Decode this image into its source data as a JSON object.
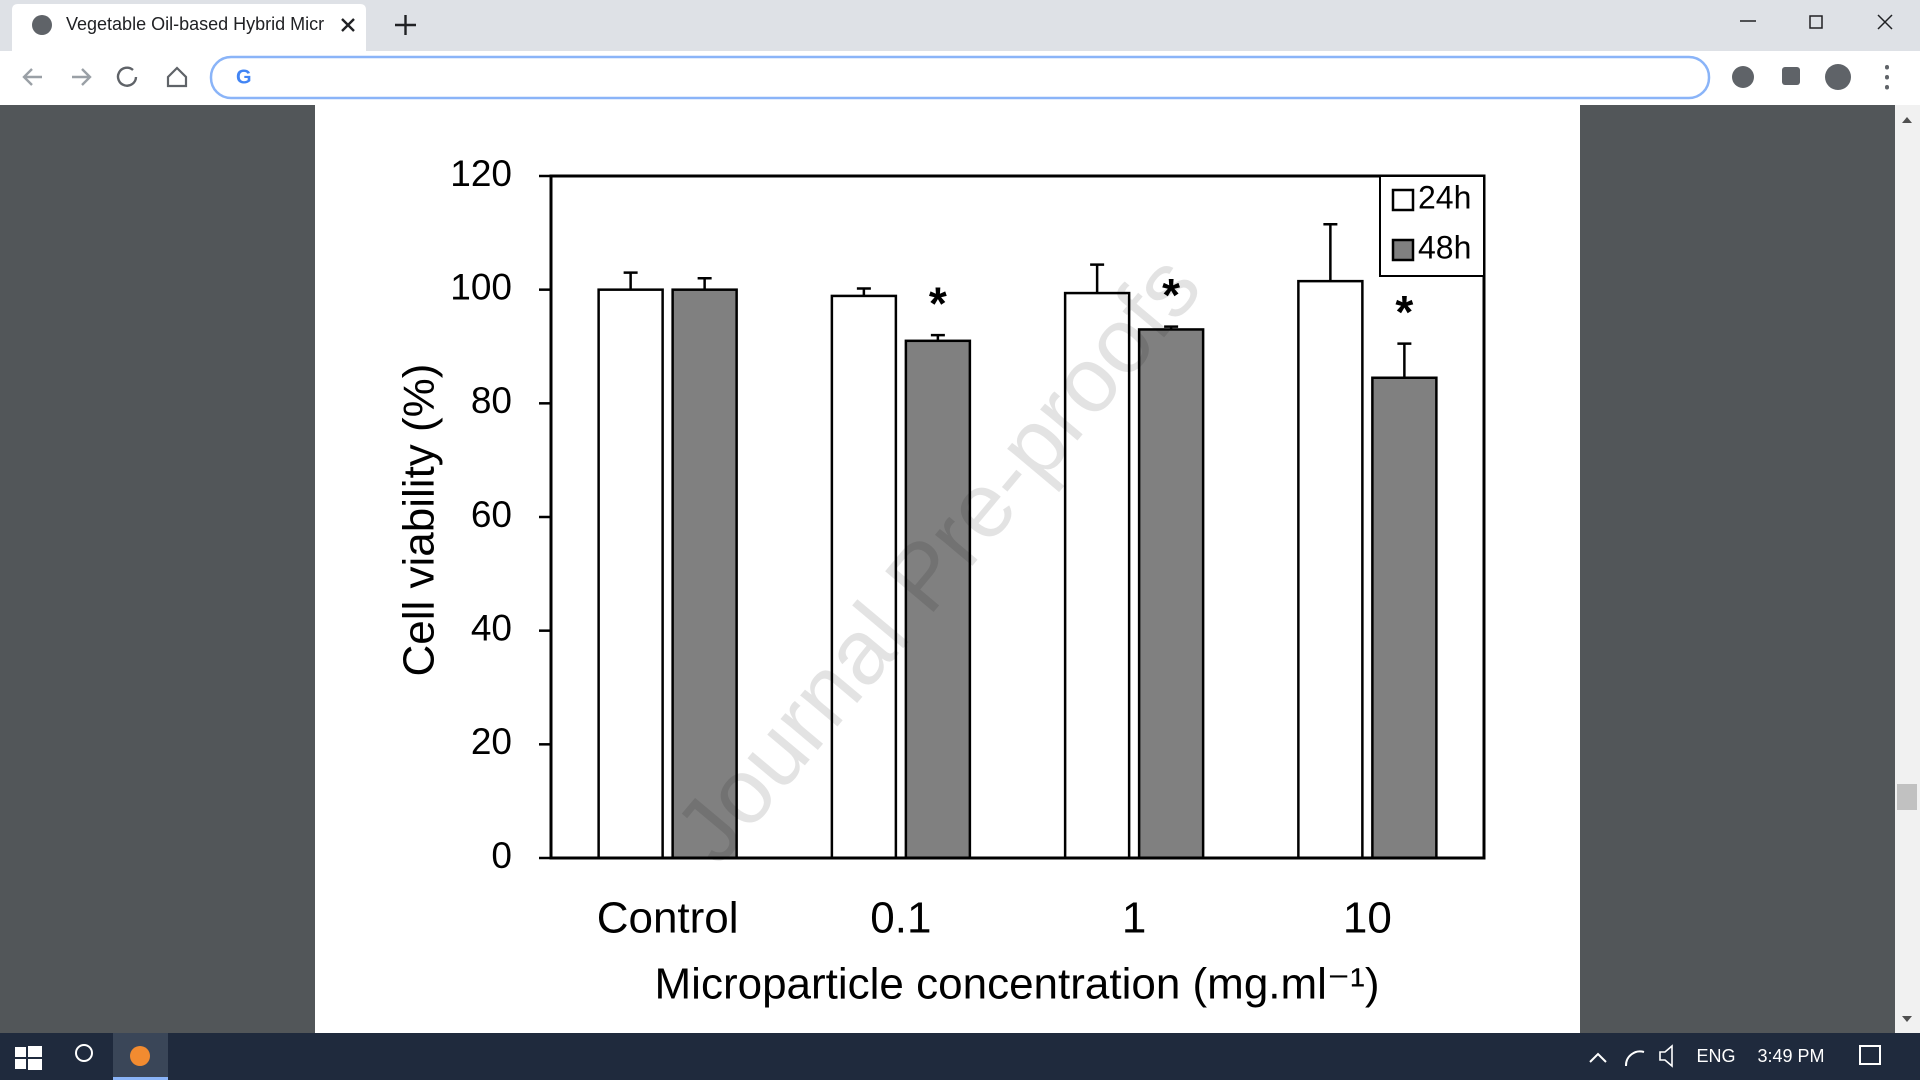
{
  "browser": {
    "tab_title": "Vegetable Oil-based Hybrid Micr"
  },
  "taskbar": {
    "language": "ENG",
    "time": "3:49 PM"
  },
  "chart_data": {
    "type": "bar",
    "watermark": "Journal Pre-proofs",
    "x_label": "Microparticle concentration (mg.ml⁻¹)",
    "y_label": "Cell viability (%)",
    "categories": [
      "Control",
      "0.1",
      "1",
      "10"
    ],
    "series": [
      {
        "name": "24h",
        "color": "#ffffff",
        "values": [
          100,
          98.9,
          99.4,
          101.5
        ],
        "errors": [
          3,
          1.3,
          5,
          10
        ]
      },
      {
        "name": "48h",
        "color": "#808080",
        "values": [
          100,
          91,
          93,
          84.5
        ],
        "errors": [
          2,
          1,
          0.5,
          6
        ],
        "markers": [
          null,
          "*",
          "*",
          "*"
        ]
      }
    ],
    "ylim": [
      0,
      120
    ],
    "yticks": [
      0,
      20,
      40,
      60,
      80,
      100,
      120
    ],
    "legend": "upper right"
  }
}
